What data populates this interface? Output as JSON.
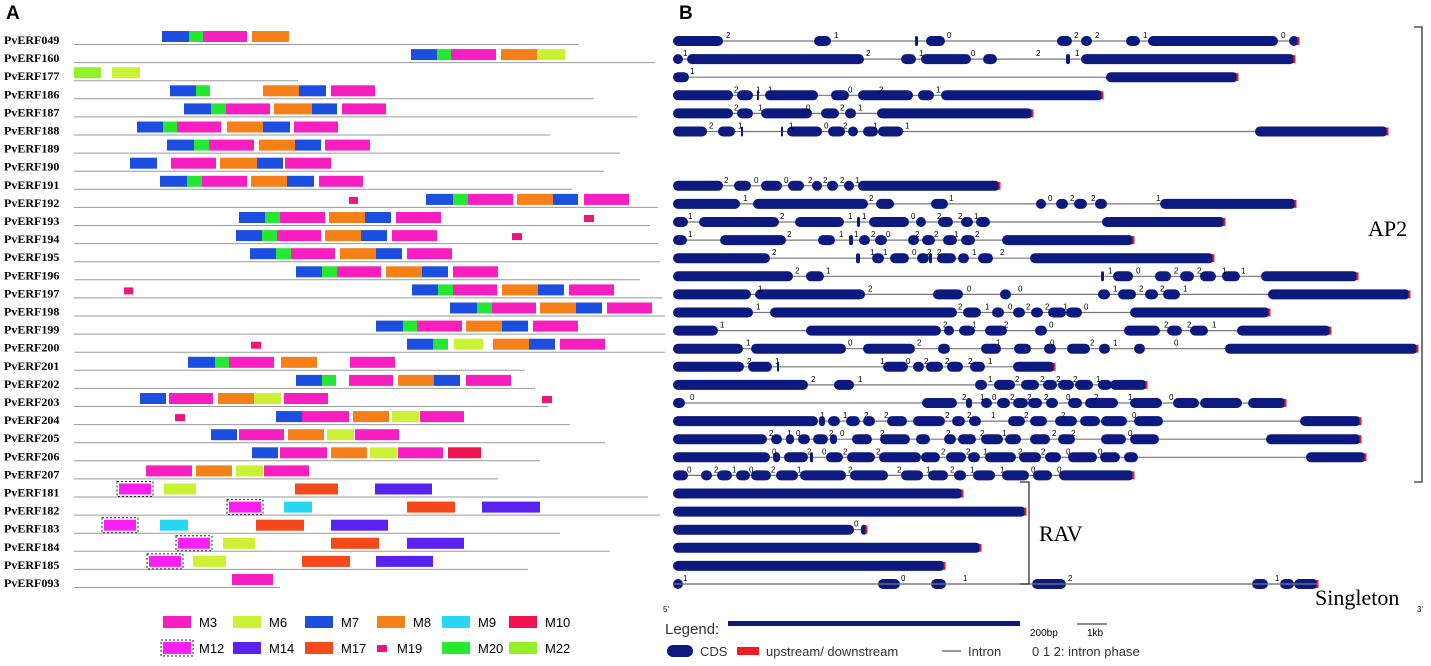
{
  "panels": {
    "a": "A",
    "b": "B"
  },
  "genes": [
    "PvERF049",
    "PvERF160",
    "PvERF177",
    "PvERF186",
    "PvERF187",
    "PvERF188",
    "PvERF189",
    "PvERF190",
    "PvERF191",
    "PvERF192",
    "PvERF193",
    "PvERF194",
    "PvERF195",
    "PvERF196",
    "PvERF197",
    "PvERF198",
    "PvERF199",
    "PvERF200",
    "PvERF201",
    "PvERF202",
    "PvERF203",
    "PvERF204",
    "PvERF205",
    "PvERF206",
    "PvERF207",
    "PvERF181",
    "PvERF182",
    "PvERF183",
    "PvERF184",
    "PvERF185",
    "PvERF093"
  ],
  "groups": {
    "ap2": "AP2",
    "rav": "RAV",
    "singleton": "Singleton"
  },
  "colors": {
    "M3": "#f71fbf",
    "M6": "#ccf033",
    "M7": "#1c4ee0",
    "M8": "#f57f18",
    "M9": "#29d7f2",
    "M10": "#f0154f",
    "M12": "#f91ef2",
    "M14": "#5a22ef",
    "M17": "#f5491c",
    "M19": "#f0157a",
    "M20": "#26e832",
    "M22": "#95f02a",
    "cds": "#0c1a80",
    "utr": "#ee1c25",
    "line": "#9a9a9a"
  },
  "motif_legend": [
    "M3",
    "M6",
    "M7",
    "M8",
    "M9",
    "M10",
    "M12",
    "M14",
    "M17",
    "M19",
    "M20",
    "M22"
  ],
  "legend_b": {
    "title": "Legend:",
    "scale_bp": "200bp",
    "scale_kb": "1kb",
    "cds": "CDS",
    "utr": "upstream/ downstream",
    "intron": "Intron",
    "phase": "0  1  2: intron phase",
    "axis_start": "5'",
    "axis_end": "3'"
  }
}
